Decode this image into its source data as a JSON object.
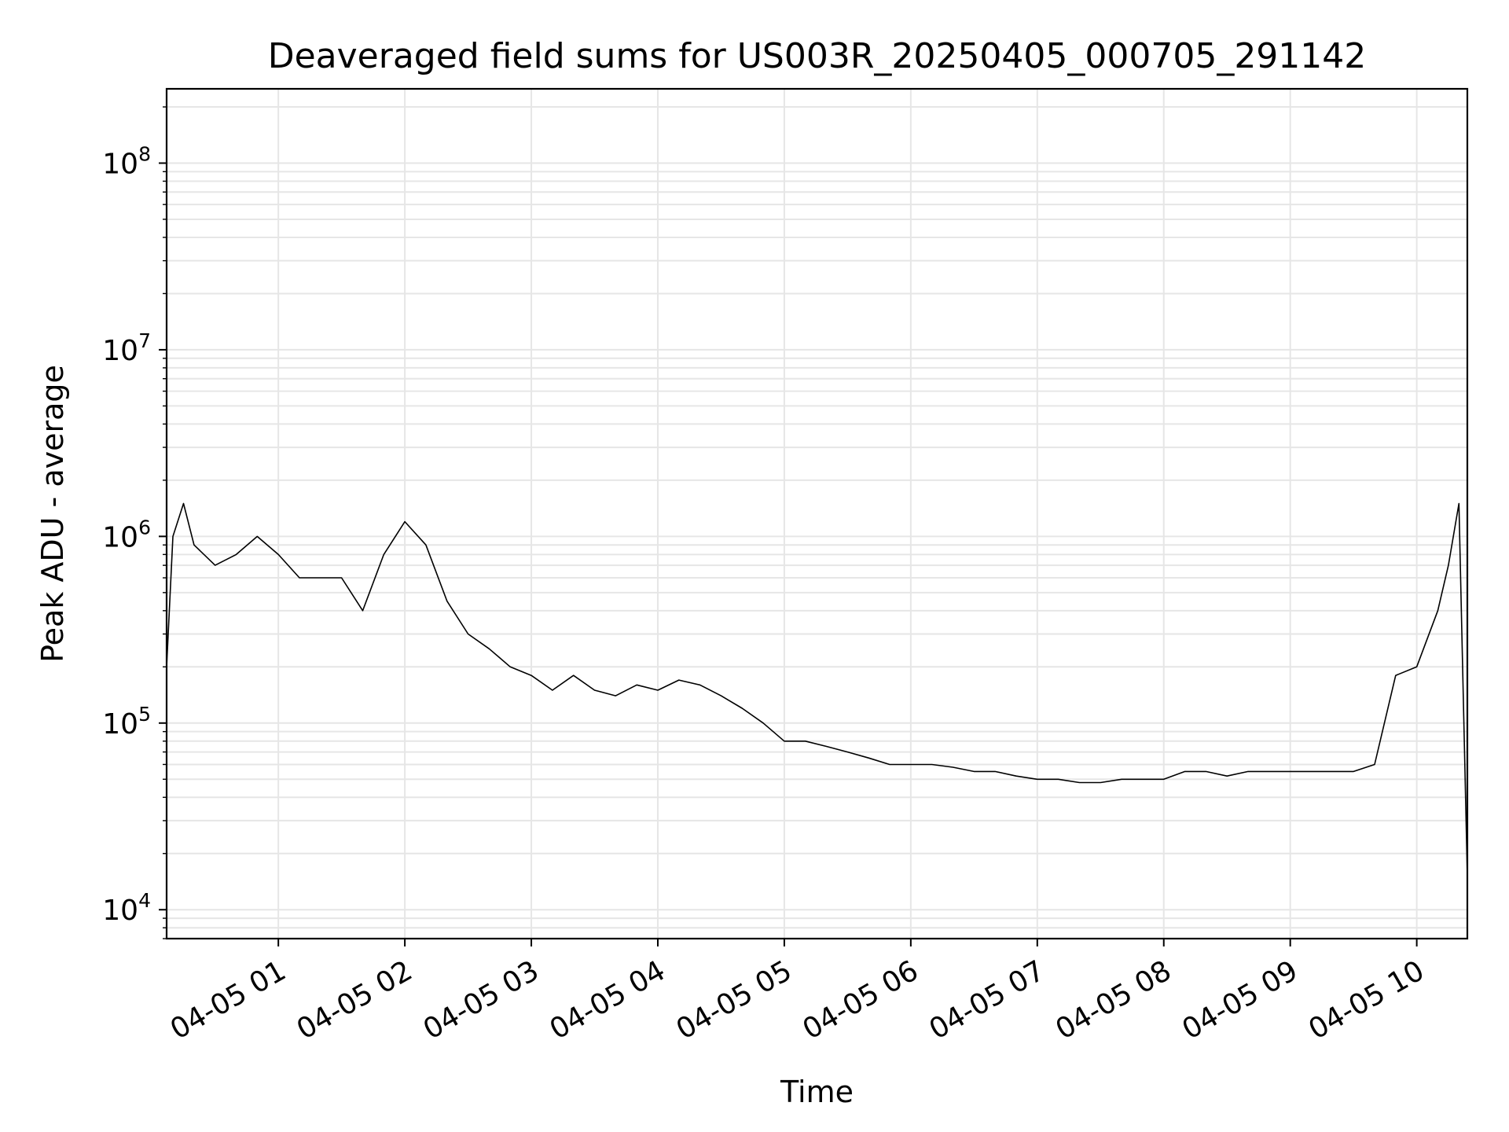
{
  "chart_data": {
    "type": "line",
    "title": "Deaveraged field sums for US003R_20250405_000705_291142",
    "xlabel": "Time",
    "ylabel": "Peak ADU - average",
    "yscale": "log",
    "ylim": [
      7000,
      250000000
    ],
    "xlim": [
      "04-05 00:07",
      "04-05 10:24"
    ],
    "x_ticks": [
      "04-05 01",
      "04-05 02",
      "04-05 03",
      "04-05 04",
      "04-05 05",
      "04-05 06",
      "04-05 07",
      "04-05 08",
      "04-05 09",
      "04-05 10"
    ],
    "y_ticks": [
      {
        "base": "10",
        "exp": "4",
        "value": 10000
      },
      {
        "base": "10",
        "exp": "5",
        "value": 100000
      },
      {
        "base": "10",
        "exp": "6",
        "value": 1000000
      },
      {
        "base": "10",
        "exp": "7",
        "value": 10000000
      },
      {
        "base": "10",
        "exp": "8",
        "value": 100000000
      }
    ],
    "grid": true,
    "line_color": "#000000",
    "grid_color": "#e6e6e6",
    "series": [
      {
        "x": [
          "04-05 00:07",
          "04-05 00:10",
          "04-05 00:15",
          "04-05 00:20",
          "04-05 00:30",
          "04-05 00:40",
          "04-05 00:50",
          "04-05 01:00",
          "04-05 01:10",
          "04-05 01:20",
          "04-05 01:30",
          "04-05 01:40",
          "04-05 01:50",
          "04-05 02:00",
          "04-05 02:10",
          "04-05 02:20",
          "04-05 02:30",
          "04-05 02:40",
          "04-05 02:50",
          "04-05 03:00",
          "04-05 03:10",
          "04-05 03:20",
          "04-05 03:30",
          "04-05 03:40",
          "04-05 03:50",
          "04-05 04:00",
          "04-05 04:10",
          "04-05 04:20",
          "04-05 04:30",
          "04-05 04:40",
          "04-05 04:50",
          "04-05 05:00",
          "04-05 05:10",
          "04-05 05:20",
          "04-05 05:30",
          "04-05 05:40",
          "04-05 05:50",
          "04-05 06:00",
          "04-05 06:10",
          "04-05 06:20",
          "04-05 06:30",
          "04-05 06:40",
          "04-05 06:50",
          "04-05 07:00",
          "04-05 07:10",
          "04-05 07:20",
          "04-05 07:30",
          "04-05 07:40",
          "04-05 07:50",
          "04-05 08:00",
          "04-05 08:10",
          "04-05 08:20",
          "04-05 08:30",
          "04-05 08:40",
          "04-05 08:50",
          "04-05 09:00",
          "04-05 09:10",
          "04-05 09:20",
          "04-05 09:30",
          "04-05 09:40",
          "04-05 09:50",
          "04-05 10:00",
          "04-05 10:10",
          "04-05 10:15",
          "04-05 10:20",
          "04-05 10:24"
        ],
        "y": [
          200000,
          1000000,
          1500000,
          900000,
          700000,
          800000,
          1000000,
          800000,
          600000,
          600000,
          600000,
          400000,
          800000,
          1200000,
          900000,
          450000,
          300000,
          250000,
          200000,
          180000,
          150000,
          180000,
          150000,
          140000,
          160000,
          150000,
          170000,
          160000,
          140000,
          120000,
          100000,
          80000,
          80000,
          75000,
          70000,
          65000,
          60000,
          60000,
          60000,
          58000,
          55000,
          55000,
          52000,
          50000,
          50000,
          48000,
          48000,
          50000,
          50000,
          50000,
          55000,
          55000,
          52000,
          55000,
          55000,
          55000,
          55000,
          55000,
          55000,
          60000,
          180000,
          200000,
          400000,
          700000,
          1500000,
          15000
        ]
      }
    ]
  }
}
